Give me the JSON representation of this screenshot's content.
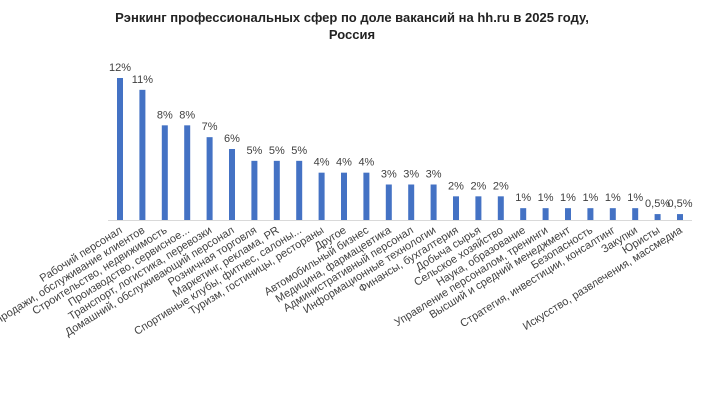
{
  "chart_data": {
    "type": "bar",
    "title": [
      "Рэнкинг профессиональных сфер по доле вакансий на hh.ru в 2025 году,",
      "Россия"
    ],
    "categories": [
      "Рабочий персонал",
      "Продажи, обслуживание клиентов",
      "Строительство, недвижимость",
      "Производство, сервисное...",
      "Транспорт, логистика, перевозки",
      "Домашний, обслуживающий персонал",
      "Розничная торговля",
      "Маркетинг, реклама, PR",
      "Спортивные клубы, фитнес, салоны...",
      "Туризм, гостиницы, рестораны",
      "Другое",
      "Автомобильный бизнес",
      "Медицина, фармацевтика",
      "Административный персонал",
      "Информационные технологии",
      "Финансы, бухгалтерия",
      "Добыча сырья",
      "Сельское хозяйство",
      "Наука, образование",
      "Управление персоналом, тренинги",
      "Высший и средний менеджмент",
      "Безопасность",
      "Стратегия, инвестиции, консалтинг",
      "Закупки",
      "Юристы",
      "Искусство, развлечения, массмедиа"
    ],
    "values": [
      12,
      11,
      8,
      8,
      7,
      6,
      5,
      5,
      5,
      4,
      4,
      4,
      3,
      3,
      3,
      2,
      2,
      2,
      1,
      1,
      1,
      1,
      1,
      1,
      0.5,
      0.5
    ],
    "value_labels": [
      "12%",
      "11%",
      "8%",
      "8%",
      "7%",
      "6%",
      "5%",
      "5%",
      "5%",
      "4%",
      "4%",
      "4%",
      "3%",
      "3%",
      "3%",
      "2%",
      "2%",
      "2%",
      "1%",
      "1%",
      "1%",
      "1%",
      "1%",
      "1%",
      "0,5%",
      "0,5%"
    ],
    "color": "#4472c4"
  }
}
